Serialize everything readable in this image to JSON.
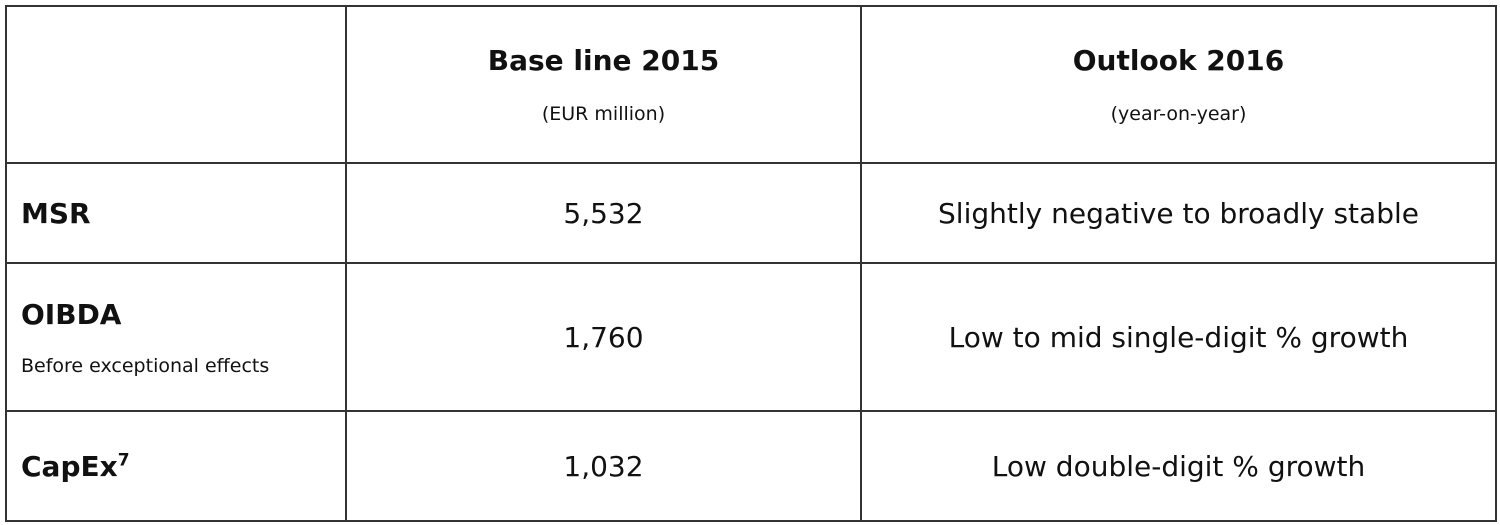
{
  "table": {
    "header": [
      {
        "title": "Base line 2015",
        "unit": "(EUR million)"
      },
      {
        "title": "Outlook 2016",
        "unit": "(year-on-year)"
      }
    ],
    "rows": [
      {
        "label": "MSR",
        "value": "5,532",
        "outlook": "Slightly negative to broadly stable"
      },
      {
        "label": "OIBDA",
        "note": "Before exceptional effects",
        "value": "1,760",
        "outlook": "Low to mid single-digit % growth"
      },
      {
        "label": "CapEx",
        "footnote": "7",
        "value": "1,032",
        "outlook": "Low double-digit % growth"
      }
    ]
  }
}
